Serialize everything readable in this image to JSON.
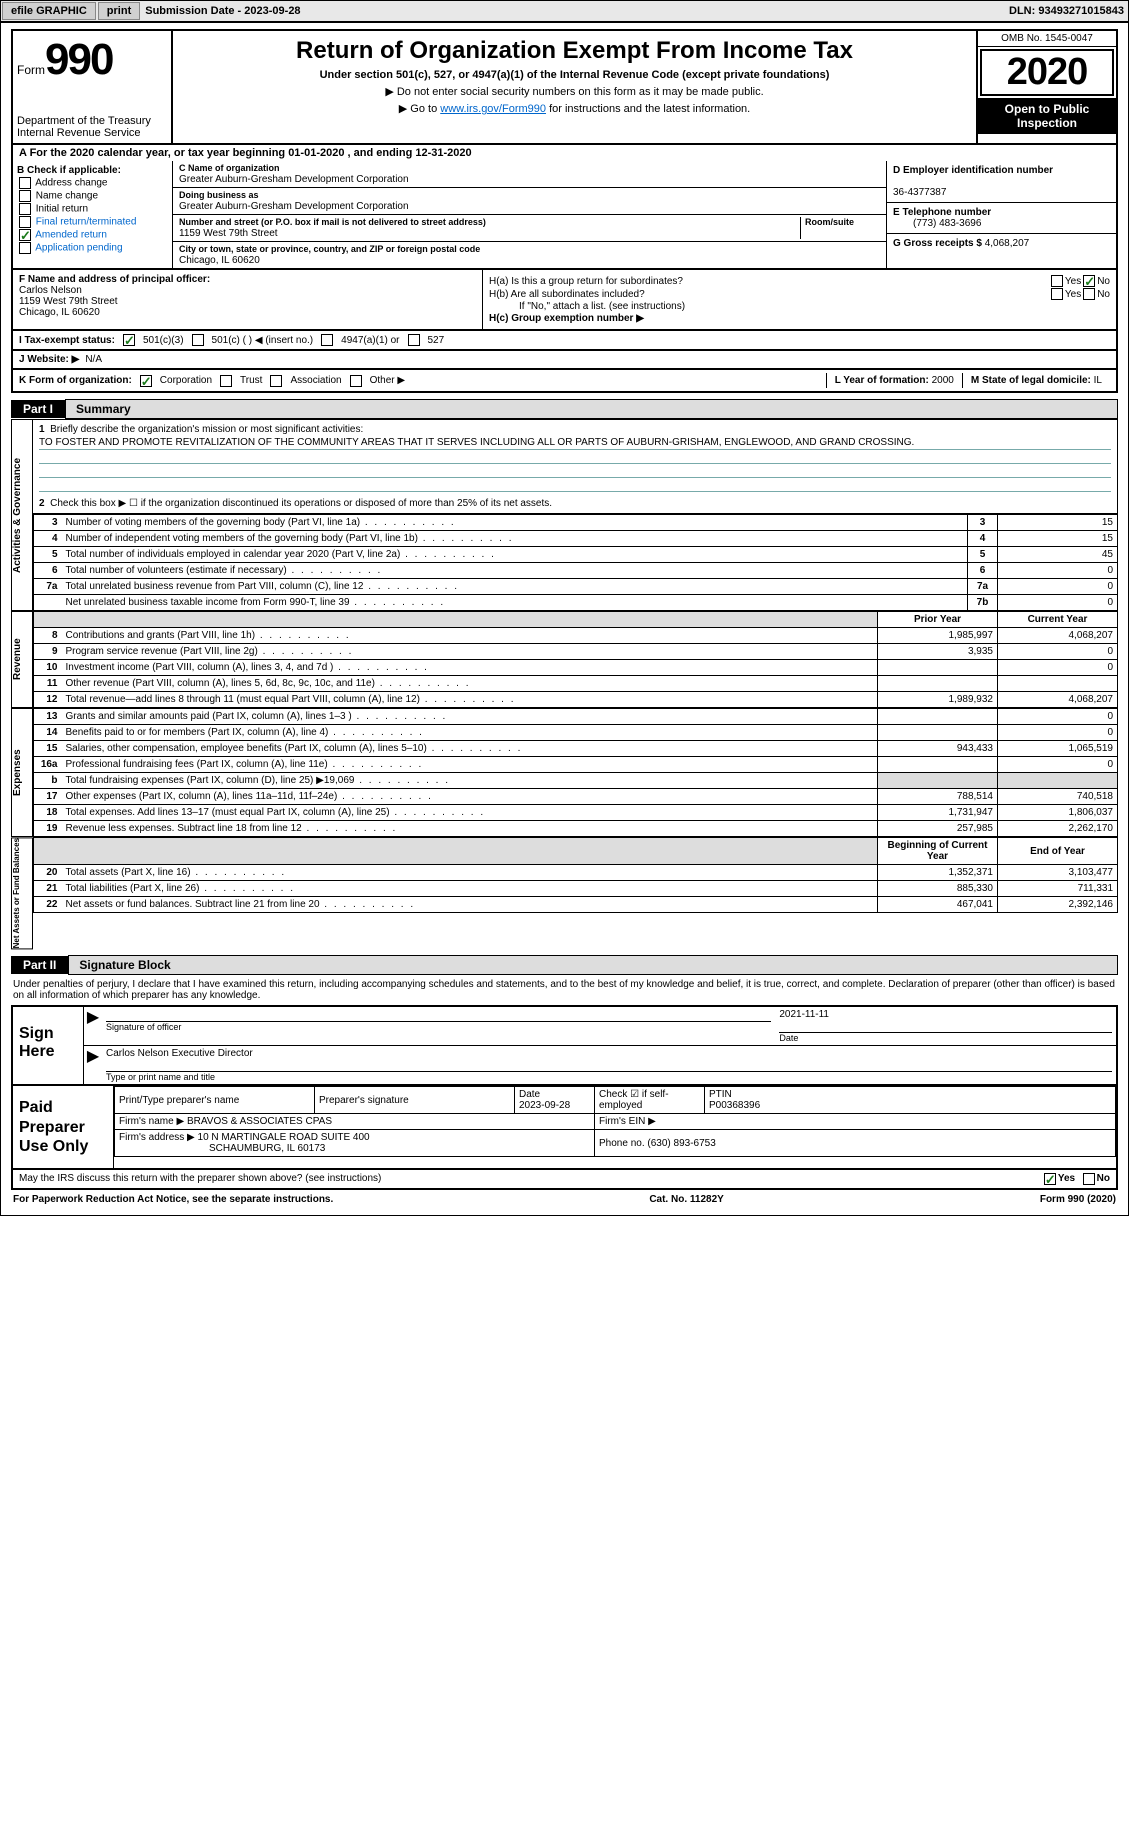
{
  "topbar": {
    "efile": "efile GRAPHIC",
    "print": "print",
    "sub_label": "Submission Date - ",
    "sub_date": "2023-09-28",
    "dln": "DLN: 93493271015843"
  },
  "formhead": {
    "form_prefix": "Form",
    "form_num": "990",
    "dept": "Department of the Treasury",
    "irs": "Internal Revenue Service",
    "title": "Return of Organization Exempt From Income Tax",
    "subtitle": "Under section 501(c), 527, or 4947(a)(1) of the Internal Revenue Code (except private foundations)",
    "note1": "▶ Do not enter social security numbers on this form as it may be made public.",
    "note2_pre": "▶ Go to ",
    "note2_link": "www.irs.gov/Form990",
    "note2_post": " for instructions and the latest information.",
    "omb": "OMB No. 1545-0047",
    "year": "2020",
    "open": "Open to Public Inspection"
  },
  "period": "A For the 2020 calendar year, or tax year beginning 01-01-2020   , and ending 12-31-2020",
  "sectionB": {
    "head": "B Check if applicable:",
    "items": [
      "Address change",
      "Name change",
      "Initial return",
      "Final return/terminated",
      "Amended return",
      "Application pending"
    ],
    "checked": [
      false,
      false,
      false,
      false,
      true,
      false
    ],
    "colors": [
      "#000",
      "#000",
      "#000",
      "#0066cc",
      "#0066cc",
      "#0066cc"
    ]
  },
  "sectionC": {
    "name_lbl": "C Name of organization",
    "name": "Greater Auburn-Gresham Development Corporation",
    "dba_lbl": "Doing business as",
    "dba": "Greater Auburn-Gresham Development Corporation",
    "addr_lbl": "Number and street (or P.O. box if mail is not delivered to street address)",
    "room_lbl": "Room/suite",
    "addr": "1159 West 79th Street",
    "city_lbl": "City or town, state or province, country, and ZIP or foreign postal code",
    "city": "Chicago, IL  60620"
  },
  "sectionD": {
    "lbl": "D Employer identification number",
    "val": "36-4377387"
  },
  "sectionE": {
    "lbl": "E Telephone number",
    "val": "(773) 483-3696"
  },
  "sectionG": {
    "lbl": "G Gross receipts $",
    "val": "4,068,207"
  },
  "sectionF": {
    "lbl": "F  Name and address of principal officer:",
    "name": "Carlos Nelson",
    "addr1": "1159 West 79th Street",
    "addr2": "Chicago, IL  60620"
  },
  "sectionH": {
    "ha": "H(a)  Is this a group return for subordinates?",
    "hb": "H(b)  Are all subordinates included?",
    "hb_note": "If \"No,\" attach a list. (see instructions)",
    "hc": "H(c)  Group exemption number ▶",
    "yes": "Yes",
    "no": "No"
  },
  "lineI": {
    "lbl": "I   Tax-exempt status:",
    "opts": [
      "501(c)(3)",
      "501(c) (  ) ◀ (insert no.)",
      "4947(a)(1) or",
      "527"
    ]
  },
  "lineJ": {
    "lbl": "J   Website: ▶",
    "val": "N/A"
  },
  "lineK": {
    "lbl": "K Form of organization:",
    "opts": [
      "Corporation",
      "Trust",
      "Association",
      "Other ▶"
    ],
    "L_lbl": "L Year of formation:",
    "L_val": "2000",
    "M_lbl": "M State of legal domicile:",
    "M_val": "IL"
  },
  "part1": {
    "hdr_num": "Part I",
    "hdr_title": "Summary",
    "side1": "Activities & Governance",
    "side2": "Revenue",
    "side3": "Expenses",
    "side4": "Net Assets or Fund Balances",
    "q1": "Briefly describe the organization's mission or most significant activities:",
    "mission": "TO FOSTER AND PROMOTE REVITALIZATION OF THE COMMUNITY AREAS THAT IT SERVES INCLUDING ALL OR PARTS OF AUBURN-GRISHAM, ENGLEWOOD, AND GRAND CROSSING.",
    "q2": "Check this box ▶ ☐ if the organization discontinued its operations or disposed of more than 25% of its net assets.",
    "hdr_prior": "Prior Year",
    "hdr_curr": "Current Year",
    "hdr_beg": "Beginning of Current Year",
    "hdr_end": "End of Year",
    "lines_gov": [
      {
        "n": "3",
        "t": "Number of voting members of the governing body (Part VI, line 1a)",
        "box": "3",
        "v": "15"
      },
      {
        "n": "4",
        "t": "Number of independent voting members of the governing body (Part VI, line 1b)",
        "box": "4",
        "v": "15"
      },
      {
        "n": "5",
        "t": "Total number of individuals employed in calendar year 2020 (Part V, line 2a)",
        "box": "5",
        "v": "45"
      },
      {
        "n": "6",
        "t": "Total number of volunteers (estimate if necessary)",
        "box": "6",
        "v": "0"
      },
      {
        "n": "7a",
        "t": "Total unrelated business revenue from Part VIII, column (C), line 12",
        "box": "7a",
        "v": "0"
      },
      {
        "n": "",
        "t": "Net unrelated business taxable income from Form 990-T, line 39",
        "box": "7b",
        "v": "0"
      }
    ],
    "lines_rev": [
      {
        "n": "8",
        "t": "Contributions and grants (Part VIII, line 1h)",
        "p": "1,985,997",
        "c": "4,068,207"
      },
      {
        "n": "9",
        "t": "Program service revenue (Part VIII, line 2g)",
        "p": "3,935",
        "c": "0"
      },
      {
        "n": "10",
        "t": "Investment income (Part VIII, column (A), lines 3, 4, and 7d )",
        "p": "",
        "c": "0"
      },
      {
        "n": "11",
        "t": "Other revenue (Part VIII, column (A), lines 5, 6d, 8c, 9c, 10c, and 11e)",
        "p": "",
        "c": ""
      },
      {
        "n": "12",
        "t": "Total revenue—add lines 8 through 11 (must equal Part VIII, column (A), line 12)",
        "p": "1,989,932",
        "c": "4,068,207"
      }
    ],
    "lines_exp": [
      {
        "n": "13",
        "t": "Grants and similar amounts paid (Part IX, column (A), lines 1–3 )",
        "p": "",
        "c": "0"
      },
      {
        "n": "14",
        "t": "Benefits paid to or for members (Part IX, column (A), line 4)",
        "p": "",
        "c": "0"
      },
      {
        "n": "15",
        "t": "Salaries, other compensation, employee benefits (Part IX, column (A), lines 5–10)",
        "p": "943,433",
        "c": "1,065,519"
      },
      {
        "n": "16a",
        "t": "Professional fundraising fees (Part IX, column (A), line 11e)",
        "p": "",
        "c": "0"
      },
      {
        "n": "b",
        "t": "Total fundraising expenses (Part IX, column (D), line 25) ▶19,069",
        "p": "shade",
        "c": "shade"
      },
      {
        "n": "17",
        "t": "Other expenses (Part IX, column (A), lines 11a–11d, 11f–24e)",
        "p": "788,514",
        "c": "740,518"
      },
      {
        "n": "18",
        "t": "Total expenses. Add lines 13–17 (must equal Part IX, column (A), line 25)",
        "p": "1,731,947",
        "c": "1,806,037"
      },
      {
        "n": "19",
        "t": "Revenue less expenses. Subtract line 18 from line 12",
        "p": "257,985",
        "c": "2,262,170"
      }
    ],
    "lines_net": [
      {
        "n": "20",
        "t": "Total assets (Part X, line 16)",
        "p": "1,352,371",
        "c": "3,103,477"
      },
      {
        "n": "21",
        "t": "Total liabilities (Part X, line 26)",
        "p": "885,330",
        "c": "711,331"
      },
      {
        "n": "22",
        "t": "Net assets or fund balances. Subtract line 21 from line 20",
        "p": "467,041",
        "c": "2,392,146"
      }
    ]
  },
  "part2": {
    "hdr_num": "Part II",
    "hdr_title": "Signature Block",
    "decl": "Under penalties of perjury, I declare that I have examined this return, including accompanying schedules and statements, and to the best of my knowledge and belief, it is true, correct, and complete. Declaration of preparer (other than officer) is based on all information of which preparer has any knowledge.",
    "sign_here": "Sign Here",
    "sig_of_officer": "Signature of officer",
    "date_lbl": "Date",
    "sig_date": "2021-11-11",
    "officer_name": "Carlos Nelson  Executive Director",
    "type_name": "Type or print name and title",
    "paid": "Paid Preparer Use Only",
    "prep_name_lbl": "Print/Type preparer's name",
    "prep_sig_lbl": "Preparer's signature",
    "prep_date_lbl": "Date",
    "prep_date": "2023-09-28",
    "check_lbl": "Check ☑ if self-employed",
    "ptin_lbl": "PTIN",
    "ptin": "P00368396",
    "firm_name_lbl": "Firm's name   ▶",
    "firm_name": "BRAVOS & ASSOCIATES CPAS",
    "firm_ein_lbl": "Firm's EIN ▶",
    "firm_addr_lbl": "Firm's address ▶",
    "firm_addr1": "10 N MARTINGALE ROAD SUITE 400",
    "firm_addr2": "SCHAUMBURG, IL  60173",
    "phone_lbl": "Phone no.",
    "phone": "(630) 893-6753",
    "irs_q": "May the IRS discuss this return with the preparer shown above? (see instructions)",
    "yes": "Yes",
    "no": "No"
  },
  "footer": {
    "left": "For Paperwork Reduction Act Notice, see the separate instructions.",
    "mid": "Cat. No. 11282Y",
    "right": "Form 990 (2020)"
  }
}
